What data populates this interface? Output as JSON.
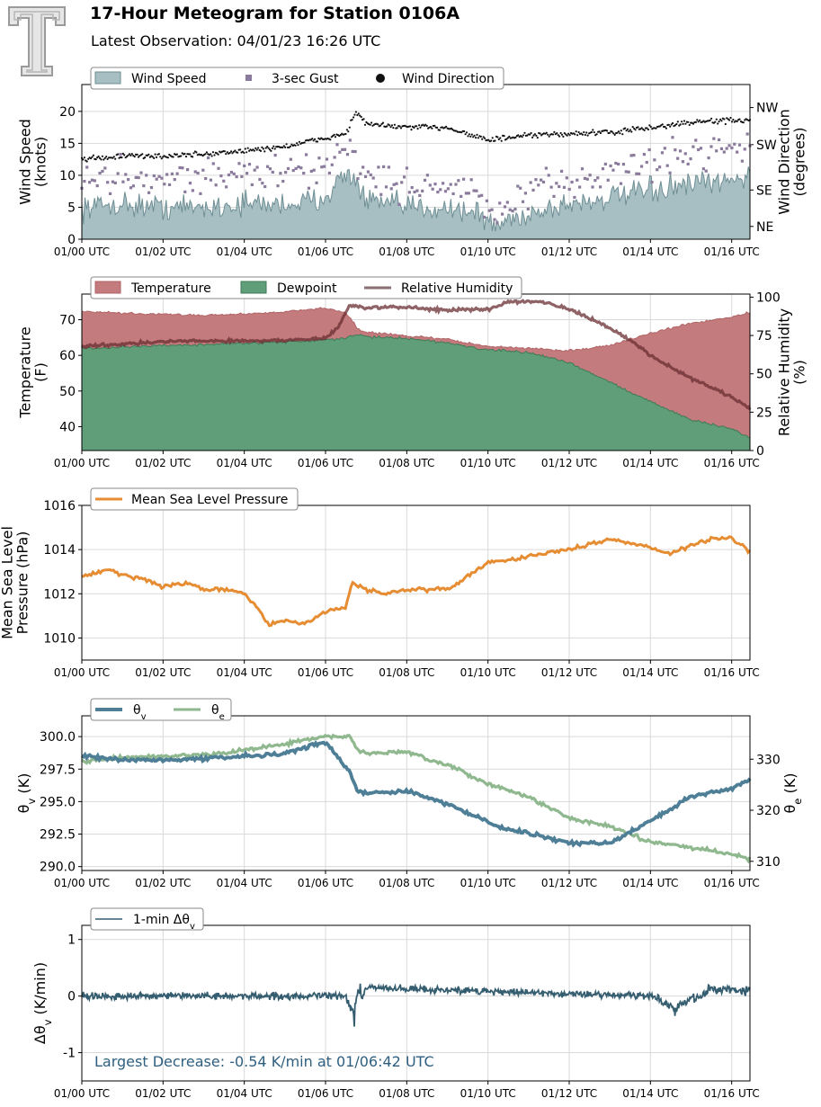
{
  "header": {
    "title": "17-Hour Meteogram for Station 0106A",
    "subtitle": "Latest Observation: 04/01/23 16:26 UTC"
  },
  "x_tick_labels": [
    "01/00 UTC",
    "01/02 UTC",
    "01/04 UTC",
    "01/06 UTC",
    "01/08 UTC",
    "01/10 UTC",
    "01/12 UTC",
    "01/14 UTC",
    "01/16 UTC"
  ],
  "colors": {
    "wind_speed_fill": "#a7bec3",
    "wind_speed_line": "#6e8f94",
    "gust": "#8a7a9b",
    "direction": "#111111",
    "temperature": "#c47b7d",
    "dewpoint": "#5f9e79",
    "humidity": "#8a6e72",
    "pressure": "#e68c32",
    "theta_v": "#4e7f97",
    "theta_e": "#8fb88f",
    "delta": "#355d70"
  },
  "chart_data": [
    {
      "type": "area",
      "ylabel": "Wind Speed\n(knots)",
      "y2label": "Wind Direction\n(degrees)",
      "x_unit": "hours since 01/00 UTC",
      "xlim": [
        0,
        16.45
      ],
      "ylim": [
        0,
        24.2
      ],
      "yticks": [
        0,
        5,
        10,
        15,
        20
      ],
      "y2ticks": [
        "NE",
        "SE",
        "SW",
        "NW"
      ],
      "legend": [
        "Wind Speed",
        "3-sec Gust",
        "Wind Direction"
      ],
      "series": [
        {
          "name": "Wind Speed",
          "x": [
            0,
            1,
            2,
            3,
            4,
            5,
            5.8,
            6.6,
            7,
            8,
            9,
            9.8,
            10.1,
            11,
            12,
            13,
            14,
            15,
            16,
            16.45
          ],
          "values": [
            5,
            5.5,
            5,
            5,
            5.5,
            5.5,
            6,
            10.5,
            6,
            5,
            5,
            4,
            2,
            4,
            5.5,
            6.5,
            7.5,
            8.5,
            9,
            10.5
          ]
        },
        {
          "name": "3-sec Gust",
          "x": [
            0,
            1,
            2,
            3,
            4,
            5,
            5.8,
            6.6,
            7,
            8,
            9,
            9.8,
            10.1,
            11,
            12,
            13,
            14,
            15,
            16,
            16.45
          ],
          "values": [
            9,
            10,
            9.5,
            10,
            10,
            10.5,
            10.5,
            15,
            9.5,
            8.5,
            8.5,
            6.5,
            3.5,
            7,
            9,
            10.5,
            12,
            13.5,
            14.5,
            15.5
          ]
        },
        {
          "name": "Wind Direction",
          "x": [
            0,
            1,
            2,
            3,
            4,
            5,
            6,
            6.5,
            6.75,
            7,
            8,
            9,
            10,
            11,
            12,
            13,
            14,
            15,
            16,
            16.45
          ],
          "values": [
            12.5,
            13,
            13,
            13.3,
            13.8,
            14.5,
            15.8,
            16.5,
            20,
            18,
            17.5,
            17.5,
            15.5,
            16.2,
            16.5,
            16.7,
            17.4,
            18.3,
            18.6,
            18.5
          ]
        }
      ]
    },
    {
      "type": "area",
      "ylabel": "Temperature\n(F)",
      "y2label": "Relative Humidity\n(%)",
      "x_unit": "hours since 01/00 UTC",
      "xlim": [
        0,
        16.45
      ],
      "ylim": [
        33.3,
        77.2
      ],
      "yticks": [
        40,
        50,
        60,
        70
      ],
      "y2lim": [
        0,
        102
      ],
      "y2ticks": [
        0,
        25,
        50,
        75,
        100
      ],
      "legend": [
        "Temperature",
        "Dewpoint",
        "Relative Humidity"
      ],
      "series": [
        {
          "name": "Temperature",
          "x": [
            0,
            1,
            2,
            3,
            4,
            5,
            5.5,
            6,
            6.5,
            6.8,
            7,
            8,
            9,
            10,
            11,
            12,
            13,
            14,
            15,
            16,
            16.45
          ],
          "values": [
            72.3,
            71.8,
            71.5,
            71.3,
            71.6,
            72.3,
            72.7,
            73.3,
            72,
            67.5,
            66.5,
            65.5,
            64.5,
            62.5,
            62,
            61.3,
            62.8,
            66.2,
            69,
            70.8,
            72
          ]
        },
        {
          "name": "Dewpoint",
          "x": [
            0,
            1,
            2,
            3,
            4,
            5,
            6,
            6.5,
            6.8,
            7,
            8,
            9,
            10,
            11,
            12,
            13,
            14,
            15,
            16,
            16.45
          ],
          "values": [
            61.8,
            62.3,
            62.8,
            63,
            63.5,
            63.8,
            64.3,
            64.8,
            66,
            65.2,
            64.8,
            63.5,
            61.5,
            60.8,
            58,
            52.5,
            47,
            42,
            39.3,
            37
          ]
        },
        {
          "name": "Relative Humidity",
          "x": [
            0,
            1,
            2,
            3,
            4,
            5,
            6,
            6.3,
            6.6,
            7,
            8,
            9,
            10,
            10.5,
            11.3,
            12,
            13,
            13.5,
            14,
            15,
            16,
            16.45
          ],
          "values": [
            68,
            69.5,
            71,
            71.5,
            71.5,
            71.8,
            73,
            80,
            95,
            93,
            93.5,
            91.5,
            92,
            97,
            97.5,
            92,
            80,
            72,
            62,
            47,
            35,
            27
          ]
        }
      ]
    },
    {
      "type": "line",
      "ylabel": "Mean Sea Level\nPressure (hPa)",
      "x_unit": "hours since 01/00 UTC",
      "xlim": [
        0,
        16.45
      ],
      "ylim": [
        1009,
        1016
      ],
      "yticks": [
        1010,
        1012,
        1014,
        1016
      ],
      "legend": [
        "Mean Sea Level Pressure"
      ],
      "series": [
        {
          "name": "Mean Sea Level Pressure",
          "x": [
            0,
            0.7,
            1,
            1.5,
            2,
            2.5,
            3,
            3.5,
            4,
            4.4,
            4.6,
            5,
            5.5,
            6,
            6.5,
            6.65,
            7,
            7.5,
            8,
            8.5,
            9,
            9.5,
            10,
            11,
            12,
            13,
            14,
            14.5,
            15,
            15.5,
            16,
            16.45
          ],
          "values": [
            1012.8,
            1013.1,
            1012.8,
            1012.7,
            1012.3,
            1012.5,
            1012.2,
            1012.2,
            1012,
            1011.2,
            1010.6,
            1010.8,
            1010.6,
            1011.2,
            1011.4,
            1012.5,
            1012.2,
            1012,
            1012.2,
            1012.2,
            1012.2,
            1012.8,
            1013.4,
            1013.7,
            1014,
            1014.5,
            1014.1,
            1013.8,
            1014.2,
            1014.5,
            1014.5,
            1013.9
          ]
        }
      ]
    },
    {
      "type": "line",
      "ylabel": "θv (K)",
      "y2label": "θe (K)",
      "x_unit": "hours since 01/00 UTC",
      "xlim": [
        0,
        16.45
      ],
      "ylim": [
        289.7,
        301.6
      ],
      "yticks": [
        290.0,
        292.5,
        295.0,
        297.5,
        300.0
      ],
      "y2lim": [
        308.2,
        338.5
      ],
      "y2ticks": [
        310,
        320,
        330
      ],
      "legend": [
        "θv",
        "θe"
      ],
      "series": [
        {
          "name": "θv",
          "x": [
            0,
            1,
            2,
            3,
            4,
            5,
            5.5,
            6,
            6.3,
            6.6,
            6.8,
            7,
            8,
            9,
            10,
            10.5,
            11,
            12,
            13,
            14,
            15,
            16,
            16.45
          ],
          "values": [
            298.5,
            298.2,
            298.2,
            298.3,
            298.5,
            298.7,
            299.2,
            299.5,
            298.5,
            297.3,
            295.7,
            295.7,
            295.8,
            294.8,
            293.5,
            292.8,
            292.6,
            291.8,
            291.8,
            293.5,
            295.4,
            296,
            296.8
          ]
        },
        {
          "name": "θe",
          "x": [
            0,
            1,
            2,
            3,
            4,
            5,
            5.5,
            6,
            6.6,
            6.8,
            7,
            8,
            9,
            10,
            11,
            12,
            13,
            14,
            15,
            16,
            16.45
          ],
          "values": [
            329.5,
            330.3,
            330.6,
            330.8,
            331.8,
            333,
            333.7,
            334.5,
            334.4,
            331.5,
            331.3,
            331.3,
            328.8,
            325.2,
            322.6,
            318.5,
            316.8,
            313.8,
            312.7,
            311.5,
            310.5
          ]
        }
      ]
    },
    {
      "type": "line",
      "ylabel": "Δθv (K/min)",
      "x_unit": "hours since 01/00 UTC",
      "xlim": [
        0,
        16.45
      ],
      "ylim": [
        -1.5,
        1.25
      ],
      "yticks": [
        -1,
        0,
        1
      ],
      "legend": [
        "1-min Δθv"
      ],
      "annotation": "Largest Decrease: -0.54 K/min at 01/06:42 UTC",
      "series": [
        {
          "name": "1-min Δθv",
          "x": [
            0,
            6.5,
            6.7,
            6.8,
            6.9,
            7,
            14,
            14.6,
            15.5,
            16,
            16.45
          ],
          "values": [
            0,
            0,
            -0.54,
            0.2,
            -0.1,
            0.25,
            0,
            -0.35,
            0.2,
            0.22,
            0.1
          ]
        }
      ]
    }
  ]
}
